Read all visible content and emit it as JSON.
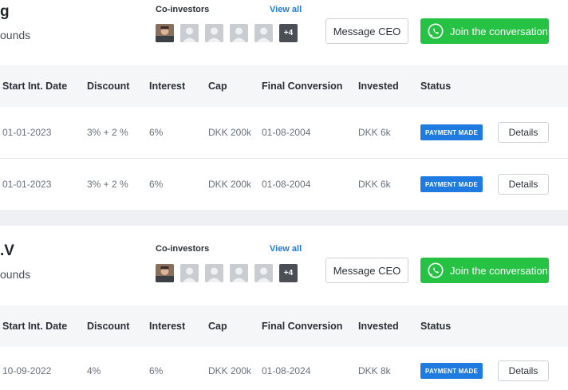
{
  "columns": [
    "Start Int. Date",
    "Discount",
    "Interest",
    "Cap",
    "Final Conversion",
    "Invested",
    "Status"
  ],
  "sections": [
    {
      "company": "g",
      "rounds_label": "ounds",
      "coinvestors_label": "Co-investors",
      "view_all": "View all",
      "more_count": "+4",
      "message_button": "Message CEO",
      "whatsapp_button": "Join the conversation",
      "rows": [
        {
          "start": "01-01-2023",
          "discount": "3% + 2 %",
          "interest": "6%",
          "cap": "DKK 200k",
          "final": "01-08-2004",
          "invested": "DKK 6k",
          "status": "PAYMENT MADE",
          "details": "Details"
        },
        {
          "start": "01-01-2023",
          "discount": "3% + 2 %",
          "interest": "6%",
          "cap": "DKK 200k",
          "final": "01-08-2004",
          "invested": "DKK 6k",
          "status": "PAYMENT MADE",
          "details": "Details"
        }
      ]
    },
    {
      "company": ".V",
      "rounds_label": "ounds",
      "coinvestors_label": "Co-investors",
      "view_all": "View all",
      "more_count": "+4",
      "message_button": "Message CEO",
      "whatsapp_button": "Join the conversation",
      "rows": [
        {
          "start": "10-09-2022",
          "discount": "4%",
          "interest": "6%",
          "cap": "DKK 200k",
          "final": "01-08-2024",
          "invested": "DKK 8k",
          "status": "PAYMENT MADE",
          "details": "Details"
        }
      ]
    }
  ],
  "colors": {
    "accent_blue": "#1f7be0",
    "whatsapp_green": "#25c244",
    "header_bg": "#f4f6f8"
  }
}
